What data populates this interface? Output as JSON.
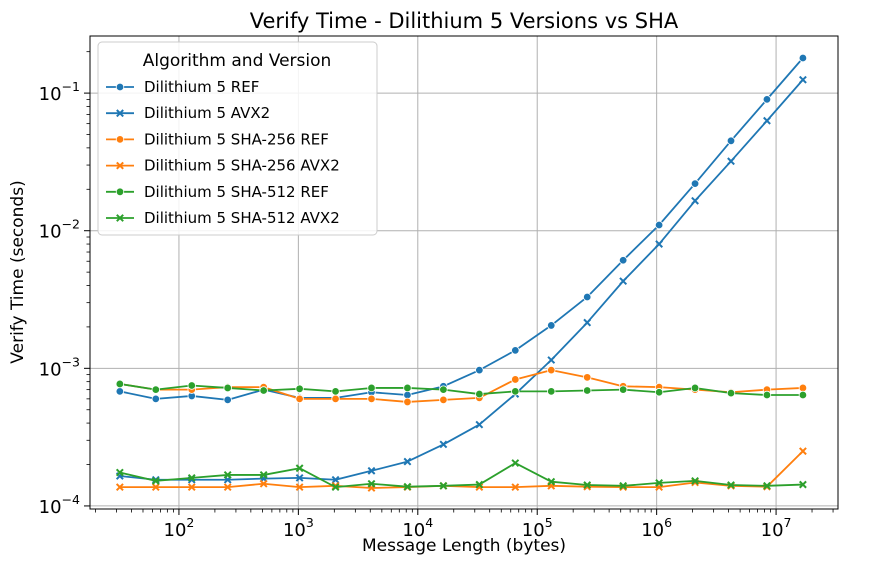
{
  "chart_data": {
    "type": "line",
    "title": "Verify Time - Dilithium 5 Versions vs SHA",
    "xlabel": "Message Length (bytes)",
    "ylabel": "Verify Time (seconds)",
    "xscale": "log",
    "yscale": "log",
    "xlim": [
      18,
      33000000
    ],
    "ylim": [
      9.5e-05,
      0.26
    ],
    "x_ticks": [
      {
        "base": "10",
        "exp": "2",
        "value": 100
      },
      {
        "base": "10",
        "exp": "3",
        "value": 1000
      },
      {
        "base": "10",
        "exp": "4",
        "value": 10000
      },
      {
        "base": "10",
        "exp": "5",
        "value": 100000
      },
      {
        "base": "10",
        "exp": "6",
        "value": 1000000
      },
      {
        "base": "10",
        "exp": "7",
        "value": 10000000
      }
    ],
    "y_ticks": [
      {
        "base": "10",
        "exp": "−4",
        "value": 0.0001
      },
      {
        "base": "10",
        "exp": "−3",
        "value": 0.001
      },
      {
        "base": "10",
        "exp": "−2",
        "value": 0.01
      },
      {
        "base": "10",
        "exp": "−1",
        "value": 0.1
      }
    ],
    "grid": true,
    "legend_title": "Algorithm and Version",
    "legend_position": "top-left",
    "x": [
      32,
      64,
      128,
      256,
      512,
      1024,
      2048,
      4096,
      8192,
      16384,
      32768,
      65536,
      131072,
      262144,
      524288,
      1048576,
      2097152,
      4194304,
      8388608,
      16777216
    ],
    "series": [
      {
        "name": "Dilithium 5 REF",
        "color": "#1f77b4",
        "marker": "circle",
        "values": [
          0.00068,
          0.0006,
          0.00063,
          0.00059,
          0.0007,
          0.00061,
          0.00061,
          0.00067,
          0.00064,
          0.00074,
          0.00097,
          0.00135,
          0.00205,
          0.0033,
          0.0061,
          0.011,
          0.022,
          0.045,
          0.09,
          0.18
        ]
      },
      {
        "name": "Dilithium 5 AVX2",
        "color": "#1f77b4",
        "marker": "x",
        "values": [
          0.000165,
          0.000155,
          0.000155,
          0.000155,
          0.000158,
          0.00016,
          0.000155,
          0.00018,
          0.00021,
          0.00028,
          0.00039,
          0.00065,
          0.00115,
          0.00215,
          0.0043,
          0.008,
          0.0165,
          0.032,
          0.063,
          0.125
        ]
      },
      {
        "name": "Dilithium 5 SHA-256 REF",
        "color": "#ff7f0e",
        "marker": "circle",
        "values": [
          0.00077,
          0.0007,
          0.0007,
          0.00073,
          0.00073,
          0.0006,
          0.0006,
          0.0006,
          0.00057,
          0.00059,
          0.00061,
          0.00083,
          0.00097,
          0.00086,
          0.00074,
          0.00073,
          0.0007,
          0.00067,
          0.0007,
          0.00072
        ]
      },
      {
        "name": "Dilithium 5 SHA-256 AVX2",
        "color": "#ff7f0e",
        "marker": "x",
        "values": [
          0.000137,
          0.000137,
          0.000137,
          0.000137,
          0.000145,
          0.000137,
          0.00014,
          0.000135,
          0.000137,
          0.00014,
          0.000137,
          0.000137,
          0.00014,
          0.000138,
          0.000137,
          0.000137,
          0.000148,
          0.00014,
          0.000138,
          0.00025
        ]
      },
      {
        "name": "Dilithium 5 SHA-512 REF",
        "color": "#2ca02c",
        "marker": "circle",
        "values": [
          0.00077,
          0.0007,
          0.00075,
          0.00072,
          0.00069,
          0.00071,
          0.00068,
          0.00072,
          0.00072,
          0.0007,
          0.00065,
          0.00068,
          0.00068,
          0.00069,
          0.0007,
          0.00067,
          0.00072,
          0.00066,
          0.00064,
          0.00064
        ]
      },
      {
        "name": "Dilithium 5 SHA-512 AVX2",
        "color": "#2ca02c",
        "marker": "x",
        "values": [
          0.000175,
          0.000152,
          0.00016,
          0.000168,
          0.000168,
          0.000188,
          0.000137,
          0.000145,
          0.000138,
          0.00014,
          0.000143,
          0.000205,
          0.00015,
          0.000142,
          0.00014,
          0.000147,
          0.000152,
          0.000142,
          0.00014,
          0.000143
        ]
      }
    ]
  }
}
